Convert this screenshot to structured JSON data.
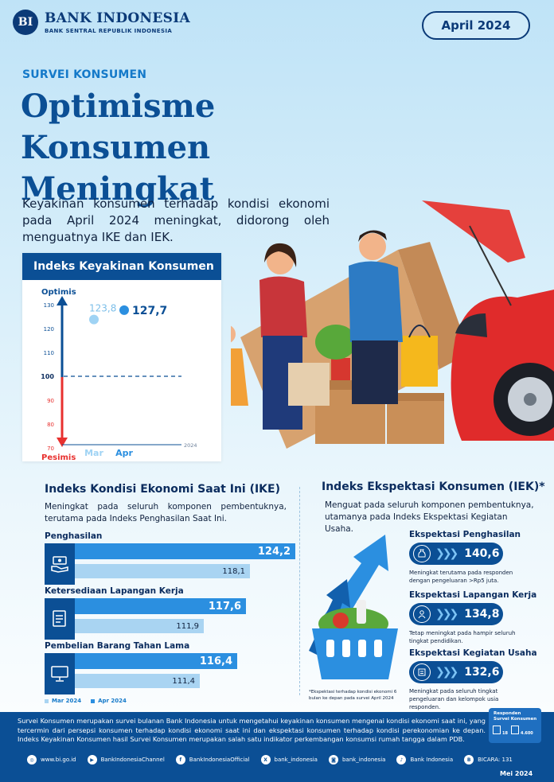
{
  "header": {
    "logo_text": "BI",
    "bank_name": "BANK INDONESIA",
    "bank_subtitle": "BANK SENTRAL REPUBLIK INDONESIA",
    "period": "April 2024"
  },
  "hero": {
    "tag": "SURVEI KONSUMEN",
    "title_line1": "Optimisme Konsumen",
    "title_line2": "Meningkat",
    "intro": "Keyakinan konsumen terhadap kondisi ekonomi pada April 2024 meningkat, didorong oleh menguatnya IKE dan IEK."
  },
  "ikk": {
    "title": "Indeks Keyakinan Konsumen",
    "top_label": "Optimis",
    "bottom_label": "Pesimis",
    "year_label": "2024",
    "ticks_above": [
      "130",
      "120",
      "110"
    ],
    "tick_mid": "100",
    "ticks_below": [
      "90",
      "80",
      "70"
    ]
  },
  "chart_data": {
    "type": "scatter",
    "title": "Indeks Keyakinan Konsumen",
    "categories": [
      "Mar",
      "Apr"
    ],
    "values": [
      123.8,
      127.7
    ],
    "value_labels": [
      "123,8",
      "127,7"
    ],
    "ylim": [
      65,
      140
    ],
    "reference_line": 100,
    "colors": {
      "Mar": "#9fd3f4",
      "Apr": "#2b8fe0",
      "axis_top": "#0b4f95",
      "axis_bottom": "#e8312f"
    }
  },
  "ike": {
    "title": "Indeks Kondisi Ekonomi Saat Ini (IKE)",
    "desc": "Meningkat pada seluruh komponen pembentuknya, terutama pada Indeks Penghasilan Saat Ini.",
    "items": [
      {
        "label": "Penghasilan",
        "icon": "money-hand-icon",
        "apr": 124.2,
        "mar": 118.1,
        "apr_text": "124,2",
        "mar_text": "118,1"
      },
      {
        "label": "Ketersediaan Lapangan Kerja",
        "icon": "job-document-icon",
        "apr": 117.6,
        "mar": 111.9,
        "apr_text": "117,6",
        "mar_text": "111,9"
      },
      {
        "label": "Pembelian Barang Tahan Lama",
        "icon": "monitor-icon",
        "apr": 116.4,
        "mar": 111.4,
        "apr_text": "116,4",
        "mar_text": "111,4"
      }
    ],
    "legend": {
      "mar": "Mar 2024",
      "apr": "Apr 2024",
      "mar_color": "#a9d4f2",
      "apr_color": "#2b8fe0"
    }
  },
  "iek": {
    "title": "Indeks Ekspektasi Konsumen (IEK)*",
    "desc": "Menguat pada seluruh komponen pembentuknya, utamanya pada Indeks Ekspektasi Kegiatan Usaha.",
    "items": [
      {
        "label": "Ekspektasi Penghasilan",
        "icon": "money-bag-icon",
        "value": "140,6",
        "note": "Meningkat terutama pada responden dengan pengeluaran >Rp5 juta."
      },
      {
        "label": "Ekspektasi Lapangan Kerja",
        "icon": "worker-icon",
        "value": "134,8",
        "note": "Tetap meningkat pada hampir seluruh tingkat pendidikan."
      },
      {
        "label": "Ekspektasi Kegiatan Usaha",
        "icon": "business-icon",
        "value": "132,6",
        "note": "Meningkat pada seluruh tingkat pengeluaran dan kelompok usia responden."
      }
    ],
    "footnote": "*Ekspektasi terhadap kondisi ekonomi 6 bulan ke depan pada survei April 2024"
  },
  "footer": {
    "text": "Survei Konsumen merupakan survei bulanan Bank Indonesia untuk mengetahui keyakinan konsumen mengenai kondisi ekonomi saat ini, yang tercermin dari persepsi konsumen terhadap kondisi ekonomi saat ini dan ekspektasi konsumen terhadap kondisi perekonomian ke depan. Indeks Keyakinan Konsumen hasil Survei Konsumen merupakan salah satu indikator perkembangan konsumsi rumah tangga dalam PDB.",
    "respondents_title_1": "Responden",
    "respondents_title_2": "Survei Konsumen",
    "cities": "18",
    "households": "4.600",
    "social": [
      {
        "icon": "globe-icon",
        "glyph": "◎",
        "label": "www.bi.go.id"
      },
      {
        "icon": "youtube-icon",
        "glyph": "▶",
        "label": "BankIndonesiaChannel"
      },
      {
        "icon": "facebook-icon",
        "glyph": "f",
        "label": "BankIndonesiaOfficial"
      },
      {
        "icon": "x-icon",
        "glyph": "X",
        "label": "bank_indonesia"
      },
      {
        "icon": "instagram-icon",
        "glyph": "◙",
        "label": "bank_indonesia"
      },
      {
        "icon": "tiktok-icon",
        "glyph": "♪",
        "label": "Bank Indonesia"
      },
      {
        "icon": "bicara-icon",
        "glyph": "B",
        "label": "BICARA: 131"
      }
    ],
    "published": "Mei 2024"
  }
}
